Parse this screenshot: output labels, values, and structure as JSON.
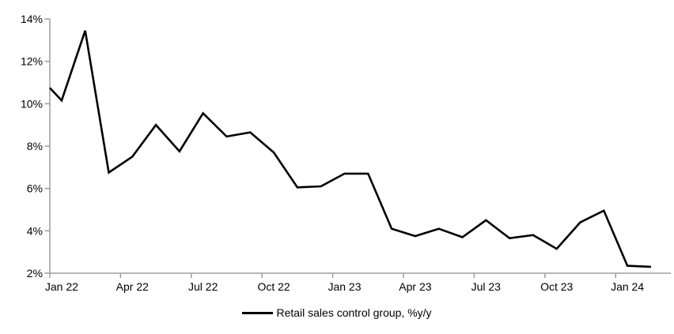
{
  "page": {
    "background": "#ffffff"
  },
  "chart": {
    "legend_label": "Retail sales control group, %y/y",
    "series_color": "#000000",
    "axis_color": "#9d9d9d",
    "text_color": "#000000"
  },
  "chart_data": {
    "type": "line",
    "x": [
      "Dec 21",
      "Jan 22",
      "Feb 22",
      "Mar 22",
      "Apr 22",
      "May 22",
      "Jun 22",
      "Jul 22",
      "Aug 22",
      "Sep 22",
      "Oct 22",
      "Nov 22",
      "Dec 22",
      "Jan 23",
      "Feb 23",
      "Mar 23",
      "Apr 23",
      "May 23",
      "Jun 23",
      "Jul 23",
      "Aug 23",
      "Sep 23",
      "Oct 23",
      "Nov 23",
      "Dec 23",
      "Jan 24",
      "Feb 24"
    ],
    "series": [
      {
        "name": "Retail sales control group, %y/y",
        "values": [
          10.75,
          10.15,
          13.45,
          6.75,
          7.5,
          9.0,
          7.75,
          9.55,
          8.45,
          8.65,
          7.7,
          6.05,
          6.1,
          6.7,
          6.7,
          4.1,
          3.75,
          4.1,
          3.7,
          4.5,
          3.65,
          3.8,
          3.15,
          4.4,
          4.95,
          2.35,
          2.3
        ]
      }
    ],
    "x_tick_labels": [
      "Jan 22",
      "Apr 22",
      "Jul 22",
      "Oct 22",
      "Jan 23",
      "Apr 23",
      "Jul 23",
      "Oct 23",
      "Jan 24"
    ],
    "y_tick_labels": [
      "14%",
      "12%",
      "10%",
      "8%",
      "6%",
      "4%",
      "2%"
    ],
    "ylim": [
      2,
      14
    ],
    "y_tick_step": 2,
    "x_label_interval_months": 3,
    "grid": false,
    "legend_position": "bottom-center",
    "layout_hints": {
      "first_point_clipped_at_y_axis": true
    }
  }
}
